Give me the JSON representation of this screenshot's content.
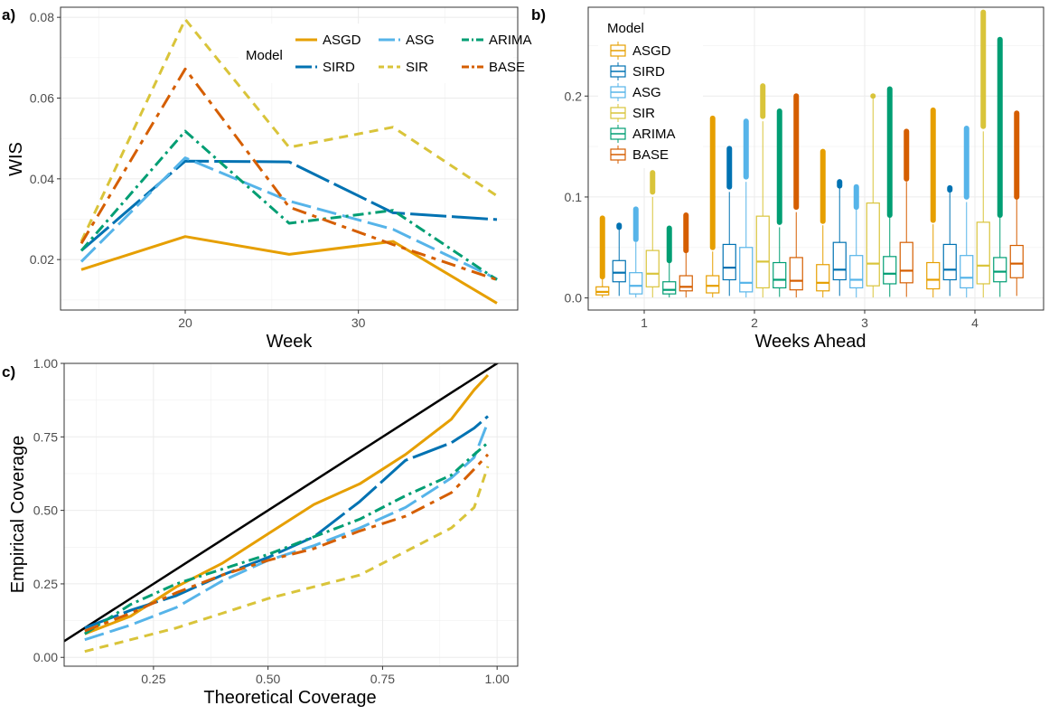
{
  "styles": {
    "ASGD": {
      "color": "#E69F00",
      "dash": ""
    },
    "SIRD": {
      "color": "#0072B2",
      "dash": "40 6"
    },
    "ASG": {
      "color": "#56B4E9",
      "dash": "22 7"
    },
    "SIR": {
      "color": "#D9C43A",
      "dash": "10 7"
    },
    "ARIMA": {
      "color": "#009E73",
      "dash": "12 5 3 5"
    },
    "BASE": {
      "color": "#D55E00",
      "dash": "16 7 5 7"
    }
  },
  "chart_data": [
    {
      "panel": "a)",
      "type": "line",
      "xlabel": "Week",
      "ylabel": "WIS",
      "xlim": [
        12.8,
        39.2
      ],
      "ylim": [
        0.0075,
        0.0825
      ],
      "xticks": [
        20,
        30
      ],
      "yticks": [
        0.02,
        0.04,
        0.06,
        0.08
      ],
      "ytick_labels": [
        "0.02",
        "0.04",
        "0.06",
        "0.08"
      ],
      "legend": {
        "title": "Model",
        "position": "top-right",
        "order": [
          "ASGD",
          "ASG",
          "ARIMA",
          "SIRD",
          "SIR",
          "BASE"
        ]
      },
      "x": [
        14,
        20,
        26,
        32,
        38
      ],
      "series": [
        {
          "name": "ASGD",
          "values": [
            0.0175,
            0.0257,
            0.0213,
            0.0245,
            0.0092
          ]
        },
        {
          "name": "SIRD",
          "values": [
            0.0222,
            0.0444,
            0.0442,
            0.0316,
            0.0299
          ]
        },
        {
          "name": "ASG",
          "values": [
            0.0195,
            0.0452,
            0.0345,
            0.0275,
            0.0152
          ]
        },
        {
          "name": "SIR",
          "values": [
            0.0245,
            0.0795,
            0.0478,
            0.0528,
            0.0358
          ]
        },
        {
          "name": "ARIMA",
          "values": [
            0.0222,
            0.0518,
            0.029,
            0.0322,
            0.015
          ]
        },
        {
          "name": "BASE",
          "values": [
            0.024,
            0.0672,
            0.033,
            0.0237,
            0.015
          ]
        }
      ]
    },
    {
      "panel": "b)",
      "type": "box",
      "xlabel": "Weeks Ahead",
      "ylabel": "",
      "categories": [
        "1",
        "2",
        "3",
        "4"
      ],
      "ylim": [
        -0.012,
        0.288
      ],
      "yticks": [
        0.0,
        0.1,
        0.2
      ],
      "ytick_labels": [
        "0.0",
        "0.1",
        "0.2"
      ],
      "legend": {
        "title": "Model",
        "position": "top-left",
        "order": [
          "ASGD",
          "SIRD",
          "ASG",
          "SIR",
          "ARIMA",
          "BASE"
        ]
      },
      "series": [
        {
          "name": "ASGD",
          "boxes": [
            {
              "q1": 0.003,
              "median": 0.006,
              "q3": 0.011,
              "lo": 0.0005,
              "hi": 0.02,
              "out_lo": 0.021,
              "out_hi": 0.079
            },
            {
              "q1": 0.005,
              "median": 0.012,
              "q3": 0.022,
              "lo": 0.0005,
              "hi": 0.046,
              "out_lo": 0.05,
              "out_hi": 0.178
            },
            {
              "q1": 0.007,
              "median": 0.015,
              "q3": 0.033,
              "lo": 0.0005,
              "hi": 0.072,
              "out_lo": 0.076,
              "out_hi": 0.145
            },
            {
              "q1": 0.009,
              "median": 0.018,
              "q3": 0.035,
              "lo": 0.0005,
              "hi": 0.073,
              "out_lo": 0.077,
              "out_hi": 0.186
            }
          ]
        },
        {
          "name": "SIRD",
          "boxes": [
            {
              "q1": 0.016,
              "median": 0.025,
              "q3": 0.037,
              "lo": 0.002,
              "hi": 0.068,
              "out_lo": 0.07,
              "out_hi": 0.072
            },
            {
              "q1": 0.018,
              "median": 0.03,
              "q3": 0.053,
              "lo": 0.002,
              "hi": 0.105,
              "out_lo": 0.11,
              "out_hi": 0.148
            },
            {
              "q1": 0.018,
              "median": 0.028,
              "q3": 0.055,
              "lo": 0.002,
              "hi": 0.11,
              "out_lo": 0.111,
              "out_hi": 0.115
            },
            {
              "q1": 0.018,
              "median": 0.028,
              "q3": 0.053,
              "lo": 0.002,
              "hi": 0.106,
              "out_lo": 0.107,
              "out_hi": 0.109
            }
          ]
        },
        {
          "name": "ASG",
          "boxes": [
            {
              "q1": 0.004,
              "median": 0.012,
              "q3": 0.025,
              "lo": 0.0005,
              "hi": 0.055,
              "out_lo": 0.058,
              "out_hi": 0.088
            },
            {
              "q1": 0.006,
              "median": 0.015,
              "q3": 0.05,
              "lo": 0.0005,
              "hi": 0.115,
              "out_lo": 0.12,
              "out_hi": 0.175
            },
            {
              "q1": 0.01,
              "median": 0.018,
              "q3": 0.042,
              "lo": 0.0005,
              "hi": 0.09,
              "out_lo": 0.09,
              "out_hi": 0.11
            },
            {
              "q1": 0.01,
              "median": 0.02,
              "q3": 0.042,
              "lo": 0.0005,
              "hi": 0.095,
              "out_lo": 0.1,
              "out_hi": 0.168
            }
          ]
        },
        {
          "name": "SIR",
          "boxes": [
            {
              "q1": 0.011,
              "median": 0.024,
              "q3": 0.047,
              "lo": 0.0005,
              "hi": 0.1,
              "out_lo": 0.105,
              "out_hi": 0.124
            },
            {
              "q1": 0.01,
              "median": 0.036,
              "q3": 0.081,
              "lo": 0.0005,
              "hi": 0.175,
              "out_lo": 0.18,
              "out_hi": 0.21
            },
            {
              "q1": 0.012,
              "median": 0.034,
              "q3": 0.094,
              "lo": 0.0005,
              "hi": 0.2,
              "out_lo": 0.2,
              "out_hi": 0.2
            },
            {
              "q1": 0.014,
              "median": 0.032,
              "q3": 0.075,
              "lo": 0.0005,
              "hi": 0.165,
              "out_lo": 0.17,
              "out_hi": 0.283
            }
          ]
        },
        {
          "name": "ARIMA",
          "boxes": [
            {
              "q1": 0.004,
              "median": 0.008,
              "q3": 0.016,
              "lo": 0.0005,
              "hi": 0.035,
              "out_lo": 0.037,
              "out_hi": 0.069
            },
            {
              "q1": 0.01,
              "median": 0.018,
              "q3": 0.035,
              "lo": 0.001,
              "hi": 0.07,
              "out_lo": 0.075,
              "out_hi": 0.185
            },
            {
              "q1": 0.014,
              "median": 0.024,
              "q3": 0.041,
              "lo": 0.001,
              "hi": 0.08,
              "out_lo": 0.082,
              "out_hi": 0.207
            },
            {
              "q1": 0.016,
              "median": 0.026,
              "q3": 0.04,
              "lo": 0.001,
              "hi": 0.08,
              "out_lo": 0.082,
              "out_hi": 0.256
            }
          ]
        },
        {
          "name": "BASE",
          "boxes": [
            {
              "q1": 0.007,
              "median": 0.011,
              "q3": 0.022,
              "lo": 0.0005,
              "hi": 0.045,
              "out_lo": 0.047,
              "out_hi": 0.082
            },
            {
              "q1": 0.008,
              "median": 0.017,
              "q3": 0.04,
              "lo": 0.0005,
              "hi": 0.085,
              "out_lo": 0.09,
              "out_hi": 0.2
            },
            {
              "q1": 0.015,
              "median": 0.027,
              "q3": 0.055,
              "lo": 0.001,
              "hi": 0.115,
              "out_lo": 0.118,
              "out_hi": 0.165
            },
            {
              "q1": 0.02,
              "median": 0.034,
              "q3": 0.052,
              "lo": 0.002,
              "hi": 0.098,
              "out_lo": 0.1,
              "out_hi": 0.183
            }
          ]
        }
      ]
    },
    {
      "panel": "c)",
      "type": "line",
      "xlabel": "Theoretical Coverage",
      "ylabel": "Empirical Coverage",
      "xlim": [
        0.055,
        1.045
      ],
      "ylim": [
        -0.03,
        1.0
      ],
      "xticks": [
        0.25,
        0.5,
        0.75,
        1.0
      ],
      "xtick_labels": [
        "0.25",
        "0.50",
        "0.75",
        "1.00"
      ],
      "yticks": [
        0.0,
        0.25,
        0.5,
        0.75,
        1.0
      ],
      "ytick_labels": [
        "0.00",
        "0.25",
        "0.50",
        "0.75",
        "1.00"
      ],
      "reference_line": {
        "slope": 1,
        "intercept": 0,
        "color": "#000000"
      },
      "x": [
        0.1,
        0.2,
        0.3,
        0.4,
        0.5,
        0.6,
        0.7,
        0.8,
        0.9,
        0.95,
        0.98
      ],
      "series": [
        {
          "name": "ASGD",
          "values": [
            0.08,
            0.14,
            0.24,
            0.32,
            0.42,
            0.52,
            0.59,
            0.69,
            0.81,
            0.91,
            0.96
          ]
        },
        {
          "name": "SIRD",
          "values": [
            0.1,
            0.16,
            0.21,
            0.28,
            0.34,
            0.41,
            0.53,
            0.67,
            0.73,
            0.78,
            0.82
          ]
        },
        {
          "name": "ASG",
          "values": [
            0.06,
            0.11,
            0.17,
            0.26,
            0.33,
            0.38,
            0.44,
            0.51,
            0.61,
            0.68,
            0.8
          ]
        },
        {
          "name": "SIR",
          "values": [
            0.02,
            0.06,
            0.1,
            0.15,
            0.2,
            0.24,
            0.28,
            0.36,
            0.44,
            0.51,
            0.65
          ]
        },
        {
          "name": "ARIMA",
          "values": [
            0.08,
            0.18,
            0.25,
            0.3,
            0.35,
            0.41,
            0.47,
            0.55,
            0.62,
            0.69,
            0.73
          ]
        },
        {
          "name": "BASE",
          "values": [
            0.09,
            0.15,
            0.22,
            0.28,
            0.33,
            0.37,
            0.43,
            0.48,
            0.56,
            0.64,
            0.69
          ]
        }
      ]
    }
  ]
}
